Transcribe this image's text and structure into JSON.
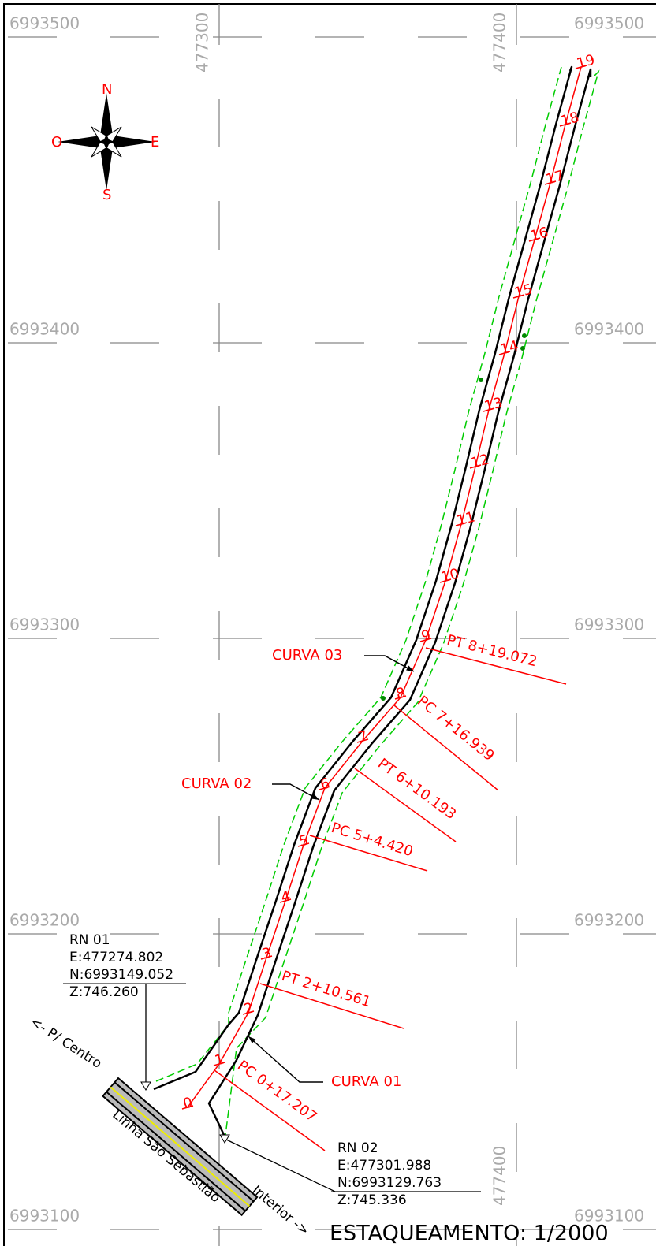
{
  "grid": {
    "northings": [
      {
        "left": "6993500",
        "right": "6993500"
      },
      {
        "left": "6993400",
        "right": "6993400"
      },
      {
        "left": "6993300",
        "right": "6993300"
      },
      {
        "left": "6993200",
        "right": "6993200"
      },
      {
        "left": "6993100",
        "right": "6993100"
      }
    ],
    "eastings_top": [
      "477300",
      "477400"
    ],
    "easting_bottom": "477400"
  },
  "compass": {
    "north": "N",
    "west": "O",
    "east": "E",
    "south": "S"
  },
  "stations": [
    "0",
    "1",
    "2",
    "3",
    "4",
    "5",
    "6",
    "7",
    "8",
    "9",
    "10",
    "11",
    "12",
    "13",
    "14",
    "15",
    "16",
    "17",
    "18",
    "19"
  ],
  "curves": [
    "CURVA 01",
    "CURVA 02",
    "CURVA 03"
  ],
  "curve_points": [
    "PC 0+17.207",
    "PT 2+10.561",
    "PC 5+4.420",
    "PT 6+10.193",
    "PC 7+16.939",
    "PT 8+19.072"
  ],
  "benchmarks": [
    {
      "name": "RN 01",
      "e": "E:477274.802",
      "n": "N:6993149.052",
      "z": "Z:746.260"
    },
    {
      "name": "RN 02",
      "e": "E:477301.988",
      "n": "N:6993129.763",
      "z": "Z:745.336"
    }
  ],
  "road": {
    "left": "<- P/ Centro",
    "name": "Linha São Sebastião",
    "right": "Interior ->"
  },
  "scale_title": "ESTAQUEAMENTO: 1/2000"
}
